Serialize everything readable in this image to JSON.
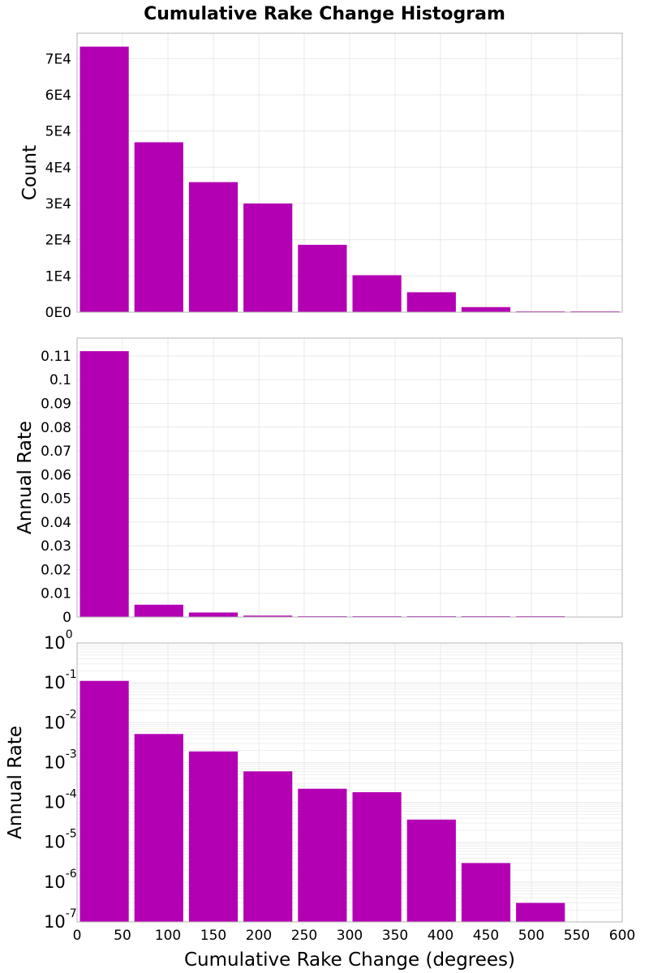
{
  "title": "Cumulative Rake Change Histogram",
  "colors": {
    "bar": "#b300b3",
    "grid": "#e8e8e8",
    "frame": "#b4b4b4"
  },
  "chart_data": [
    {
      "type": "bar",
      "title": "Cumulative Rake Change Histogram",
      "ylabel": "Count",
      "xlim": [
        0,
        600
      ],
      "ylim": [
        0,
        77000
      ],
      "yticks": [
        0,
        10000,
        20000,
        30000,
        40000,
        50000,
        60000,
        70000
      ],
      "ytick_labels": [
        "0E0",
        "1E4",
        "2E4",
        "3E4",
        "4E4",
        "5E4",
        "6E4",
        "7E4"
      ],
      "bin_width": 60,
      "x": [
        30,
        90,
        150,
        210,
        270,
        330,
        390,
        450,
        510,
        570
      ],
      "values": [
        73300,
        46900,
        35900,
        30000,
        18600,
        10200,
        5500,
        1400,
        200,
        30
      ],
      "grid": true
    },
    {
      "type": "bar",
      "ylabel": "Annual Rate",
      "xlim": [
        0,
        600
      ],
      "ylim": [
        0,
        0.1175
      ],
      "yticks": [
        0,
        0.01,
        0.02,
        0.03,
        0.04,
        0.05,
        0.06,
        0.07,
        0.08,
        0.09,
        0.1,
        0.11
      ],
      "ytick_labels": [
        "0",
        "0.01",
        "0.02",
        "0.03",
        "0.04",
        "0.05",
        "0.06",
        "0.07",
        "0.08",
        "0.09",
        "0.1",
        "0.11"
      ],
      "bin_width": 60,
      "x": [
        30,
        90,
        150,
        210,
        270,
        330,
        390,
        450,
        510,
        570
      ],
      "values": [
        0.112,
        0.0052,
        0.0019,
        0.0006,
        0.00022,
        0.00018,
        3.7e-05,
        3e-06,
        3e-07,
        0
      ],
      "grid": true
    },
    {
      "type": "bar",
      "ylabel": "Annual Rate",
      "xlabel": "Cumulative Rake Change (degrees)",
      "yscale": "log",
      "xlim": [
        0,
        600
      ],
      "ylim": [
        1e-07,
        1
      ],
      "yticks": [
        {
          "base": "10",
          "exp": "0",
          "value": 1
        },
        {
          "base": "10",
          "exp": "-1",
          "value": 0.1
        },
        {
          "base": "10",
          "exp": "-2",
          "value": 0.01
        },
        {
          "base": "10",
          "exp": "-3",
          "value": 0.001
        },
        {
          "base": "10",
          "exp": "-4",
          "value": 0.0001
        },
        {
          "base": "10",
          "exp": "-5",
          "value": 1e-05
        },
        {
          "base": "10",
          "exp": "-6",
          "value": 1e-06
        },
        {
          "base": "10",
          "exp": "-7",
          "value": 1e-07
        }
      ],
      "xticks": [
        0,
        50,
        100,
        150,
        200,
        250,
        300,
        350,
        400,
        450,
        500,
        550,
        600
      ],
      "xtick_labels": [
        "0",
        "50",
        "100",
        "150",
        "200",
        "250",
        "300",
        "350",
        "400",
        "450",
        "500",
        "550",
        "600"
      ],
      "bin_width": 60,
      "x": [
        30,
        90,
        150,
        210,
        270,
        330,
        390,
        450,
        510,
        570
      ],
      "values": [
        0.112,
        0.0052,
        0.0019,
        0.0006,
        0.00022,
        0.00018,
        3.7e-05,
        3e-06,
        3e-07,
        0
      ],
      "grid": true
    }
  ]
}
